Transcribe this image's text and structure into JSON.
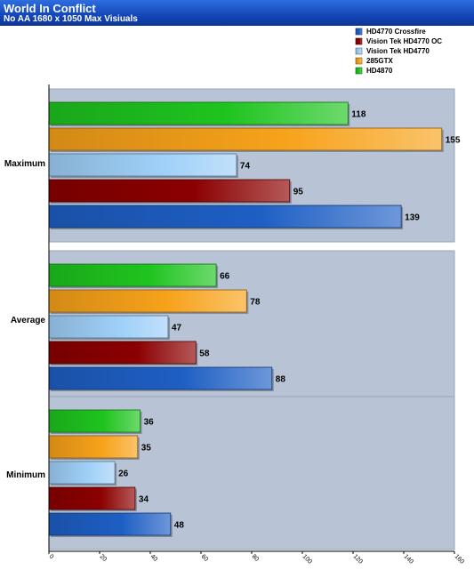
{
  "chart_data": {
    "type": "bar",
    "orientation": "horizontal",
    "title": "World In Conflict",
    "subtitle": "No AA 1680 x 1050 Max Visiuals",
    "categories": [
      "Maximum",
      "Average",
      "Minimum"
    ],
    "series": [
      {
        "name": "HD4770 Crossfire",
        "values": [
          139,
          88,
          48
        ],
        "color": "#1e5fc4"
      },
      {
        "name": "Vision Tek HD4770 OC",
        "values": [
          95,
          58,
          34
        ],
        "color": "#8b0000"
      },
      {
        "name": "Vision Tek HD4770",
        "values": [
          74,
          47,
          26
        ],
        "color": "#9fd0f8"
      },
      {
        "name": "285GTX",
        "values": [
          155,
          78,
          35
        ],
        "color": "#f7a21a"
      },
      {
        "name": "HD4870",
        "values": [
          118,
          66,
          36
        ],
        "color": "#1fc41f"
      }
    ],
    "legend_order": [
      "HD4770 Crossfire",
      "Vision Tek HD4770 OC",
      "Vision Tek HD4770",
      "285GTX",
      "HD4870"
    ],
    "bar_order_top_to_bottom": [
      "HD4870",
      "285GTX",
      "Vision Tek HD4770",
      "Vision Tek HD4770 OC",
      "HD4770 Crossfire"
    ],
    "xlim": [
      0,
      160
    ],
    "xticks": [
      0,
      20,
      40,
      60,
      80,
      100,
      120,
      140,
      160
    ],
    "legend_position": "top-right",
    "grid": false,
    "panel_color": "#b8c4d6"
  }
}
